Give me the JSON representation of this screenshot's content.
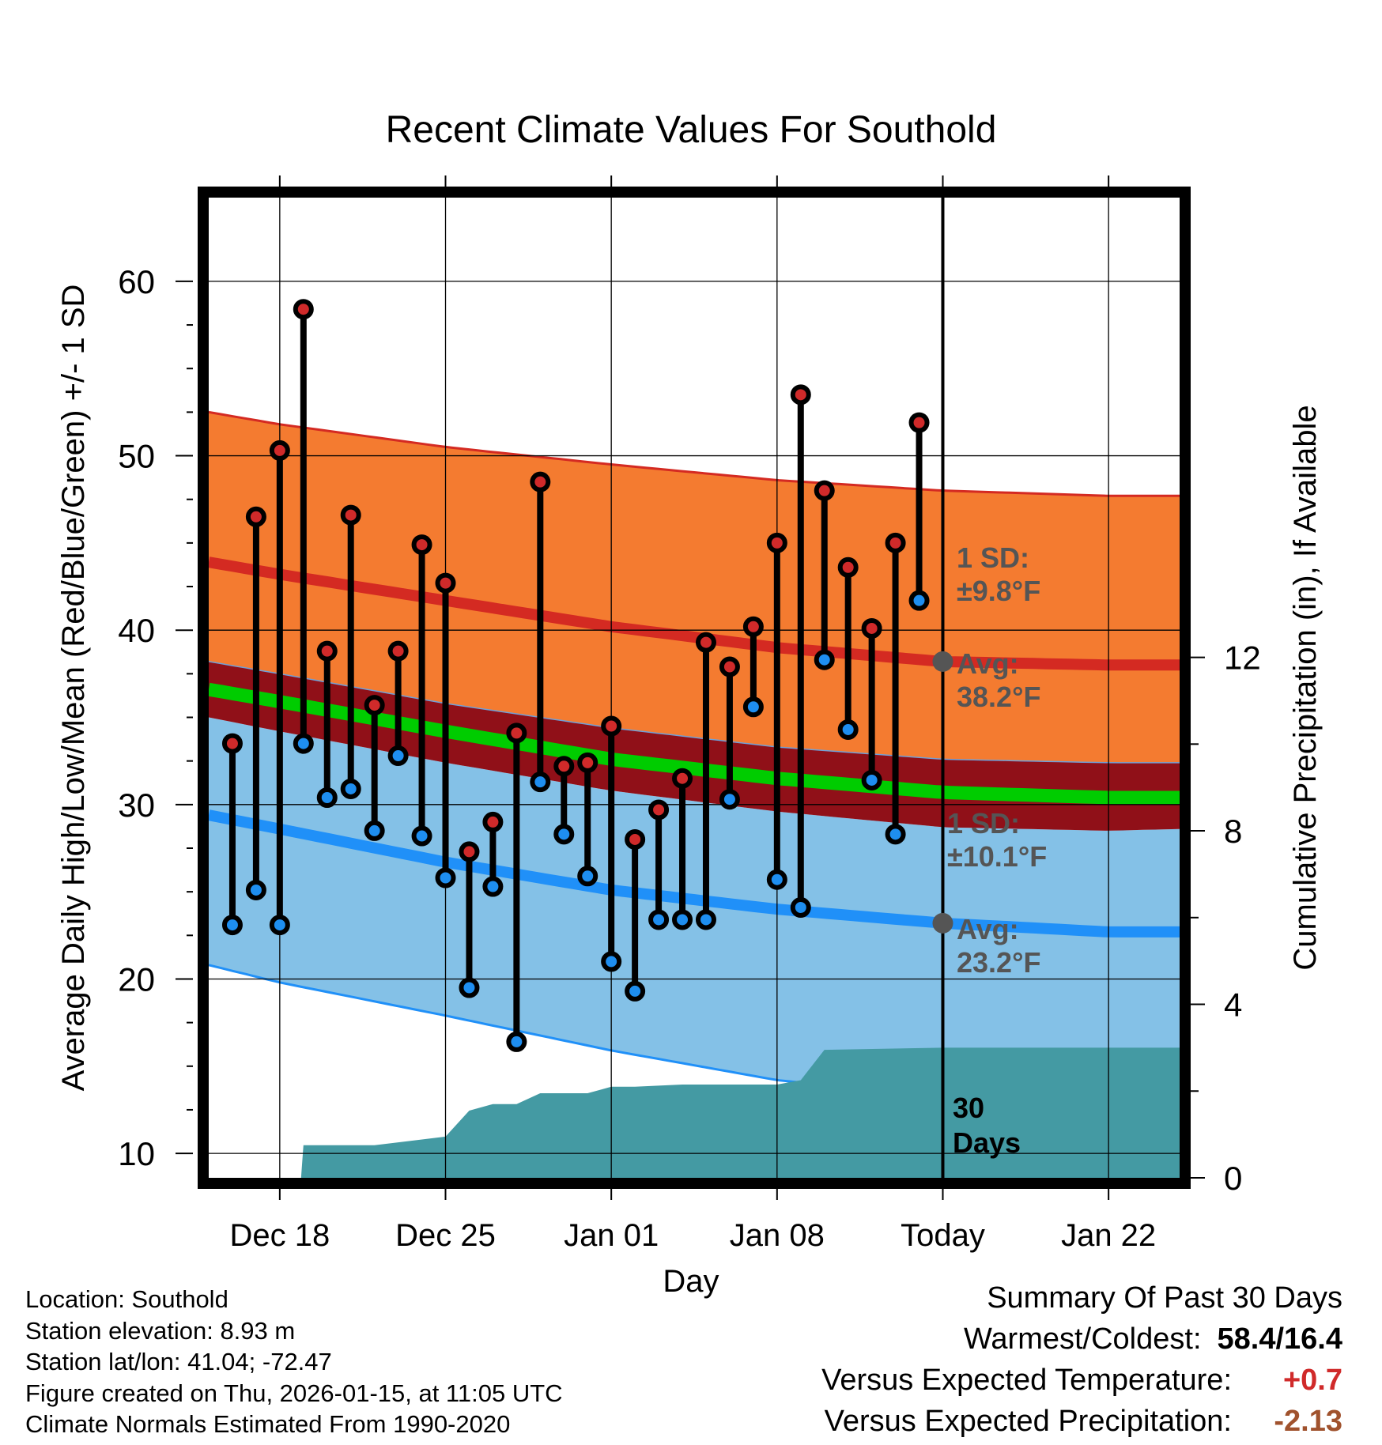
{
  "chart_data": {
    "type": "line",
    "title": "Recent Climate Values For Southold",
    "xlabel": "Day",
    "ylabel": "Average Daily High/Low/Mean (Red/Blue/Green) +/- 1 SD",
    "y2label": "Cumulative Precipitation (in), If Available",
    "ylim": [
      8.6,
      64.8
    ],
    "y2lim": [
      0,
      22.6
    ],
    "yticks": [
      10,
      20,
      30,
      40,
      50,
      60
    ],
    "y2ticks": [
      0,
      4,
      8,
      12
    ],
    "xlim": [
      -3,
      38
    ],
    "xticks": [
      {
        "day": 0,
        "label": "Dec 18"
      },
      {
        "day": 7,
        "label": "Dec 25"
      },
      {
        "day": 14,
        "label": "Jan 01"
      },
      {
        "day": 21,
        "label": "Jan 08"
      },
      {
        "day": 28,
        "label": "Today"
      },
      {
        "day": 35,
        "label": "Jan 22"
      }
    ],
    "normals_days": [
      -3,
      0,
      7,
      14,
      21,
      28,
      35,
      38
    ],
    "normal_high": [
      43.9,
      43.2,
      41.7,
      40.2,
      39.0,
      38.2,
      38.0,
      38.0
    ],
    "normal_high_upper": [
      52.5,
      51.8,
      50.5,
      49.5,
      48.6,
      48.0,
      47.7,
      47.7
    ],
    "normal_low": [
      29.4,
      28.6,
      26.7,
      25.1,
      24.0,
      23.2,
      22.7,
      22.7
    ],
    "normal_low_lower": [
      20.8,
      19.8,
      17.9,
      15.9,
      14.2,
      13.2,
      13.2,
      13.2
    ],
    "normal_mean": [
      36.6,
      35.9,
      34.2,
      32.6,
      31.5,
      30.7,
      30.4,
      30.4
    ],
    "mean_band_upper": [
      38.2,
      37.5,
      35.8,
      34.4,
      33.3,
      32.6,
      32.4,
      32.4
    ],
    "mean_band_lower": [
      35.0,
      34.2,
      32.4,
      30.8,
      29.6,
      28.7,
      28.5,
      28.6
    ],
    "observed": {
      "days": [
        -2,
        -1,
        0,
        1,
        2,
        3,
        4,
        5,
        6,
        7,
        8,
        9,
        10,
        11,
        12,
        13,
        14,
        15,
        16,
        17,
        18,
        19,
        20,
        21,
        22,
        23,
        24,
        25,
        26,
        27
      ],
      "highs": [
        33.5,
        46.5,
        50.3,
        58.4,
        38.8,
        46.6,
        35.7,
        38.8,
        44.9,
        42.7,
        27.3,
        29.0,
        34.1,
        48.5,
        32.2,
        32.4,
        34.5,
        28.0,
        29.7,
        31.5,
        39.3,
        37.9,
        40.2,
        45.0,
        53.5,
        48.0,
        43.6,
        40.1,
        45.0,
        51.9
      ],
      "lows": [
        23.1,
        25.1,
        23.1,
        33.5,
        30.4,
        30.9,
        28.5,
        32.8,
        28.2,
        25.8,
        19.5,
        25.3,
        16.4,
        31.3,
        28.3,
        25.9,
        21.0,
        19.3,
        23.4,
        23.4,
        23.4,
        30.3,
        35.6,
        25.7,
        24.1,
        38.3,
        34.3,
        31.4,
        28.3,
        41.7
      ]
    },
    "precip": {
      "days": [
        -3,
        0,
        0.9,
        1,
        4,
        7,
        8,
        9,
        10,
        11,
        13,
        14,
        15,
        17,
        20,
        21,
        22,
        23,
        28,
        38
      ],
      "cumulative": [
        0,
        0,
        0,
        0.75,
        0.75,
        0.95,
        1.55,
        1.7,
        1.7,
        1.95,
        1.95,
        2.1,
        2.1,
        2.15,
        2.15,
        2.15,
        2.25,
        2.95,
        3.0,
        3.0
      ]
    },
    "annotations": {
      "high_sd": "1 SD:",
      "high_sd_val": "±9.8°F",
      "high_avg": "Avg:",
      "high_avg_val": "38.2°F",
      "low_sd": "1 SD:",
      "low_sd_val": "±10.1°F",
      "low_avg": "Avg:",
      "low_avg_val": "23.2°F",
      "days_num": "30",
      "days_word": "Days"
    }
  },
  "colors": {
    "orange_band": "#f47b30",
    "blue_band": "#84c1e7",
    "dark_red_band": "#901018",
    "green_line": "#00cc00",
    "red_line": "#d42a22",
    "blue_line": "#2090f8",
    "precip_fill": "#449aa3",
    "high_dot": "#d02a2a",
    "low_dot": "#1e8ef0",
    "annotation_text": "#555555",
    "temp_anomaly": "#d02a2a",
    "precip_anomaly": "#a0522d"
  },
  "info": {
    "location": "Location: Southold",
    "elevation": "Station elevation: 8.93 m",
    "latlon": "Station lat/lon: 41.04; -72.47",
    "created": "Figure created on Thu, 2026-01-15, at 11:05 UTC",
    "normals": "Climate Normals Estimated From 1990-2020"
  },
  "summary": {
    "title": "Summary Of Past 30 Days",
    "warm_cold_label": "Warmest/Coldest:",
    "warm_cold_value": "58.4/16.4",
    "temp_label": "Versus Expected Temperature:",
    "temp_value": "+0.7",
    "precip_label": "Versus Expected Precipitation:",
    "precip_value": "-2.13"
  }
}
